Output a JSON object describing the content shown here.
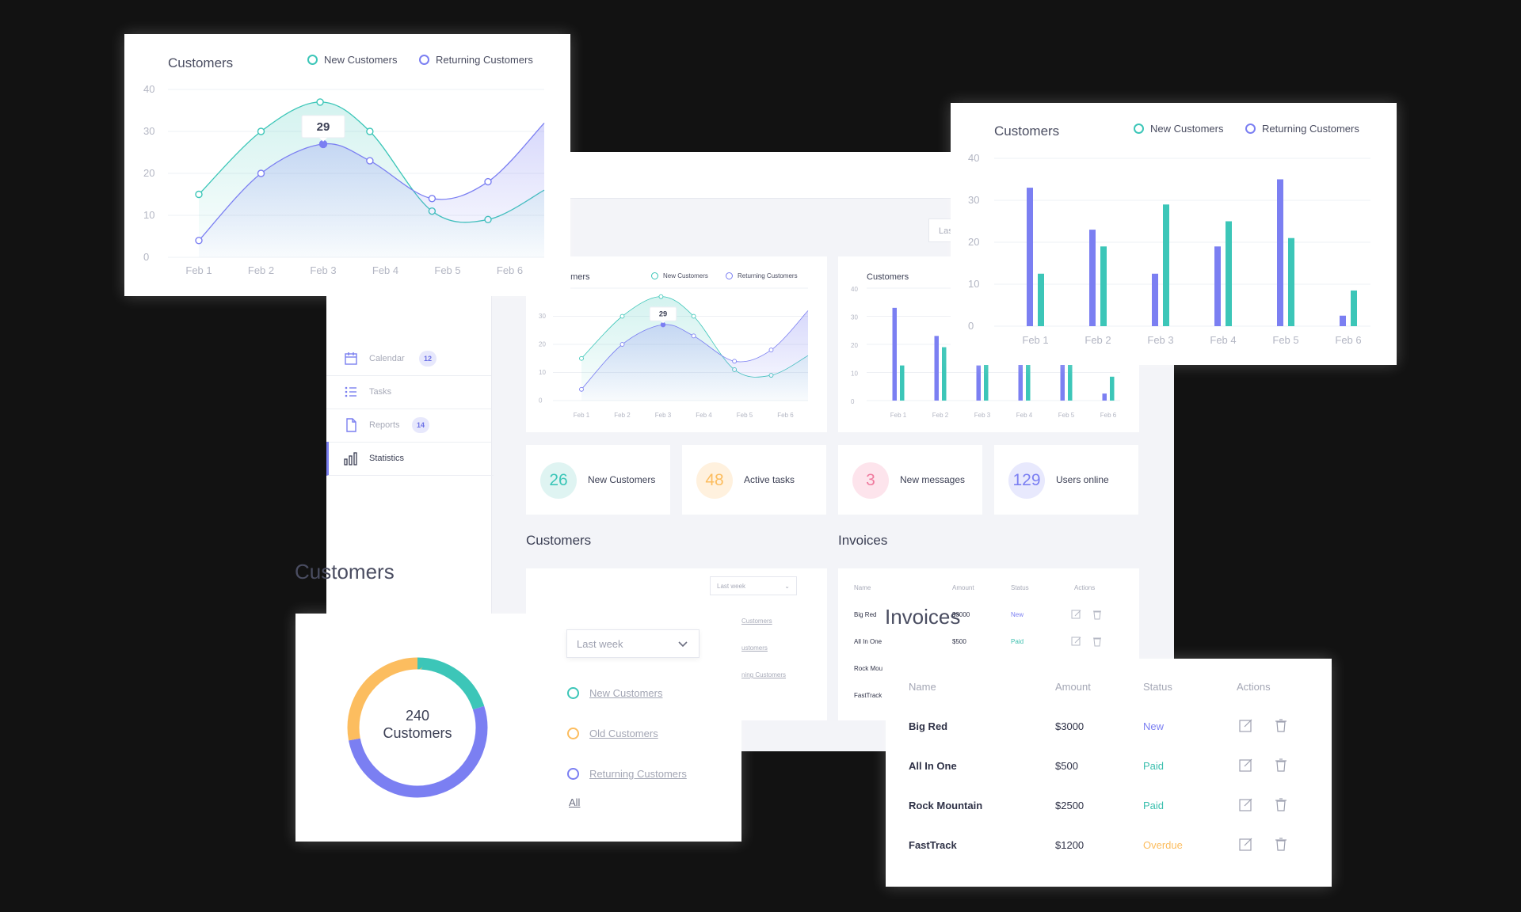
{
  "colors": {
    "teal": "#3cc6b8",
    "purple": "#7b7ff2",
    "orange": "#fcbd5f",
    "pink": "#f07a9e",
    "link_green": "#3bbfae"
  },
  "sidebar": {
    "items": [
      {
        "label": "Calendar",
        "count": "12",
        "icon": "calendar-icon"
      },
      {
        "label": "Tasks",
        "count": "",
        "icon": "task-list-icon"
      },
      {
        "label": "Reports",
        "count": "14",
        "icon": "document-icon"
      },
      {
        "label": "Statistics",
        "count": "",
        "icon": "bar-chart-icon"
      }
    ]
  },
  "dashboard": {
    "page_title_fragment": "ics",
    "top_button_fragment": "Las",
    "stats": [
      {
        "value": "26",
        "label": "New Customers"
      },
      {
        "value": "48",
        "label": "Active tasks"
      },
      {
        "value": "3",
        "label": "New messages"
      },
      {
        "value": "129",
        "label": "Users online"
      }
    ],
    "customers_title": "Customers",
    "invoices_title": "Invoices",
    "mini_line_title_fragment": "omers",
    "mini_bar_title": "Customers",
    "mini_dropdown": "Last week",
    "mini_links": [
      "Customers",
      "ustomers",
      "ning Customers"
    ],
    "mini_invoice_headers": [
      "Name",
      "Amount",
      "Status",
      "Actions"
    ],
    "mini_invoice_rows": [
      {
        "name": "Big Red",
        "amount": "$3000",
        "status": "New"
      },
      {
        "name": "All In One",
        "amount": "$500",
        "status": "Paid"
      },
      {
        "name": "Rock Mou",
        "amount": "",
        "status": ""
      },
      {
        "name": "FastTrack",
        "amount": "",
        "status": ""
      }
    ]
  },
  "line_card": {
    "title": "Customers",
    "legend": [
      "New Customers",
      "Returning Customers"
    ],
    "tooltip": "29"
  },
  "bar_card": {
    "title": "Customers",
    "legend": [
      "New Customers",
      "Returning Customers"
    ]
  },
  "donut_card": {
    "floating_title": "Customers",
    "center_value": "240",
    "center_label": "Customers",
    "dropdown": "Last week",
    "links": [
      "New Customers",
      "Old Customers",
      "Returning Customers"
    ],
    "all_link": "All"
  },
  "invoice_card": {
    "floating_title": "Invoices",
    "headers": [
      "Name",
      "Amount",
      "Status",
      "Actions"
    ],
    "rows": [
      {
        "name": "Big Red",
        "amount": "$3000",
        "status": "New",
        "status_color": "#7b7ff2"
      },
      {
        "name": "All In One",
        "amount": "$500",
        "status": "Paid",
        "status_color": "#3bbfae"
      },
      {
        "name": "Rock Mountain",
        "amount": "$2500",
        "status": "Paid",
        "status_color": "#3bbfae"
      },
      {
        "name": "FastTrack",
        "amount": "$1200",
        "status": "Overdue",
        "status_color": "#fcbd5f"
      }
    ]
  },
  "chart_data": [
    {
      "type": "area",
      "title": "Customers",
      "categories": [
        "Feb 1",
        "Feb 2",
        "Feb 3",
        "Feb 4",
        "Feb 5",
        "Feb 6"
      ],
      "x": [
        1,
        2,
        3,
        4,
        5,
        6
      ],
      "series": [
        {
          "name": "New Customers",
          "x": [
            1,
            2,
            2.95,
            3.75,
            4.75,
            5.65
          ],
          "values": [
            15,
            30,
            37,
            30,
            11,
            9
          ]
        },
        {
          "name": "Returning Customers",
          "x": [
            1,
            2,
            3,
            3.75,
            4.75,
            5.65
          ],
          "values": [
            4,
            20,
            27,
            23,
            14,
            18
          ]
        }
      ],
      "annotations": [
        "29"
      ],
      "ylim": [
        0,
        40
      ],
      "yticks": [
        0,
        10,
        20,
        30,
        40
      ],
      "grid": true,
      "legend": "top-right"
    },
    {
      "type": "bar",
      "title": "Customers",
      "categories": [
        "Feb 1",
        "Feb 2",
        "Feb 3",
        "Feb 4",
        "Feb 5",
        "Feb 6"
      ],
      "series": [
        {
          "name": "Returning Customers",
          "values": [
            33,
            23,
            12.5,
            19,
            35,
            2.5
          ]
        },
        {
          "name": "New Customers",
          "values": [
            12.5,
            19,
            29,
            25,
            21,
            8.5
          ]
        }
      ],
      "ylim": [
        0,
        40
      ],
      "yticks": [
        0,
        10,
        20,
        30,
        40
      ],
      "grid": true,
      "legend": "top-right"
    },
    {
      "type": "pie",
      "title": "240 Customers",
      "categories": [
        "New Customers",
        "Old Customers",
        "Returning Customers"
      ],
      "values": [
        20,
        28,
        52
      ]
    }
  ]
}
